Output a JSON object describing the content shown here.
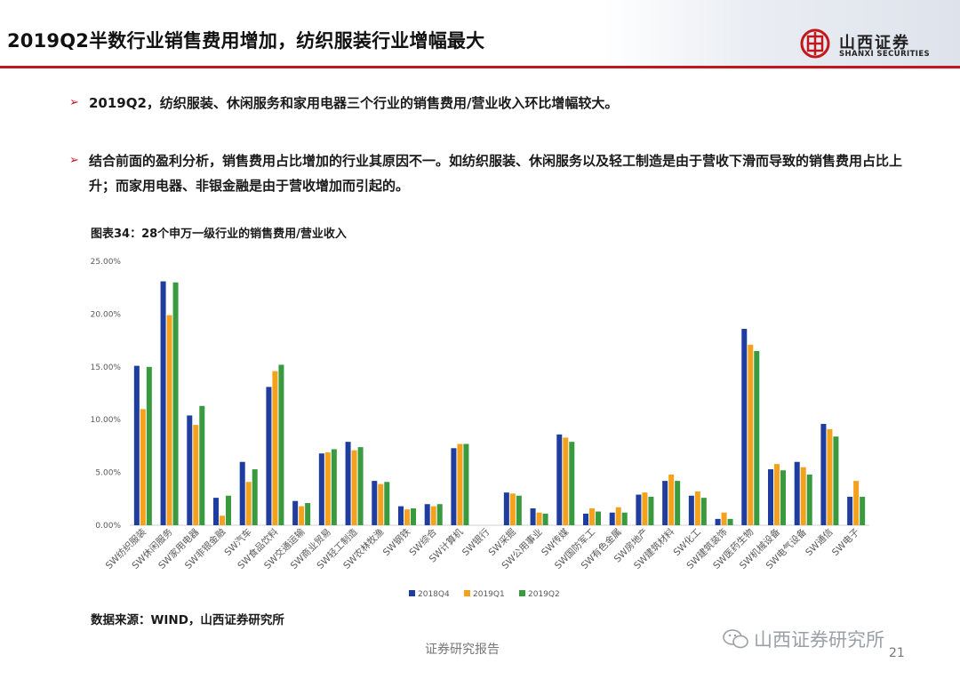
{
  "header": {
    "title": "2019Q2半数行业销售费用增加，纺织服装行业增幅最大",
    "logo_cn": "山西证券",
    "logo_en": "SHANXI SECURITIES"
  },
  "bullets": [
    "2019Q2，纺织服装、休闲服务和家用电器三个行业的销售费用/营业收入环比增幅较大。",
    "结合前面的盈利分析，销售费用占比增加的行业其原因不一。如纺织服装、休闲服务以及轻工制造是由于营收下滑而导致的销售费用占比上升；而家用电器、非银金融是由于营收增加而引起的。"
  ],
  "chart_title": "图表34：28个申万一级行业的销售费用/营业收入",
  "source": "数据来源：WIND，山西证券研究所",
  "footer": "证券研究报告",
  "watermark": "山西证券研究所",
  "page_number": "21",
  "colors": {
    "accent": "#c0181d",
    "series_2018Q4": "#1f3d9e",
    "series_2019Q1": "#f4a11d",
    "series_2019Q2": "#3a9a3f"
  },
  "chart_data": {
    "type": "bar",
    "categories": [
      "SW纺织服装",
      "SW休闲服务",
      "SW家用电器",
      "SW非银金融",
      "SW汽车",
      "SW食品饮料",
      "SW交通运输",
      "SW商业贸易",
      "SW轻工制造",
      "SW农林牧渔",
      "SW钢铁",
      "SW综合",
      "SW计算机",
      "SW银行",
      "SW采掘",
      "SW公用事业",
      "SW传媒",
      "SW国防军工",
      "SW有色金属",
      "SW房地产",
      "SW建筑材料",
      "SW化工",
      "SW建筑装饰",
      "SW医药生物",
      "SW机械设备",
      "SW电气设备",
      "SW通信",
      "SW电子"
    ],
    "series": [
      {
        "name": "2018Q4",
        "values": [
          15.1,
          23.1,
          10.4,
          2.6,
          6.0,
          13.1,
          2.3,
          6.8,
          7.9,
          4.2,
          1.8,
          2.0,
          7.3,
          0.0,
          3.1,
          1.6,
          8.6,
          1.1,
          1.2,
          2.9,
          4.2,
          2.8,
          0.6,
          18.6,
          5.3,
          6.0,
          9.6,
          2.7
        ]
      },
      {
        "name": "2019Q1",
        "values": [
          11.0,
          19.9,
          9.5,
          0.9,
          4.1,
          14.6,
          1.8,
          6.9,
          7.1,
          3.9,
          1.5,
          1.8,
          7.7,
          0.0,
          3.0,
          1.2,
          8.3,
          1.6,
          1.7,
          3.1,
          4.8,
          3.2,
          1.2,
          17.1,
          5.8,
          5.5,
          9.1,
          4.2
        ]
      },
      {
        "name": "2019Q2",
        "values": [
          15.0,
          23.0,
          11.3,
          2.8,
          5.3,
          15.2,
          2.1,
          7.2,
          7.4,
          4.1,
          1.6,
          2.0,
          7.7,
          0.0,
          2.8,
          1.1,
          7.9,
          1.3,
          1.2,
          2.7,
          4.2,
          2.6,
          0.6,
          16.5,
          5.2,
          4.8,
          8.4,
          2.7
        ]
      }
    ],
    "ylim": [
      0,
      25
    ],
    "yticks": [
      "0.00%",
      "5.00%",
      "10.00%",
      "15.00%",
      "20.00%",
      "25.00%"
    ],
    "legend_position": "bottom",
    "grid": false
  }
}
